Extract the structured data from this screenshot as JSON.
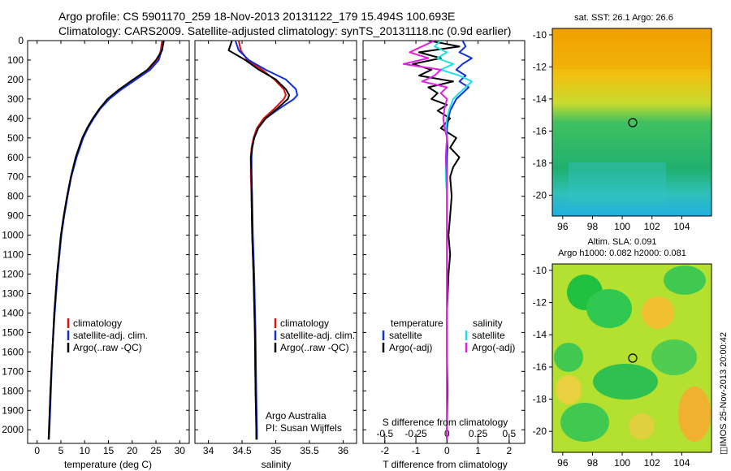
{
  "header": {
    "title_line1": "Argo profile: CS 5901170_259 18-Nov-2013 20131122_179 15.494S 100.693E",
    "title_line2": "Climatology: CARS2009. Satellite-adjusted climatology: synTS_20131118.nc (0.9d earlier)"
  },
  "panels": {
    "temperature": {
      "xlabel": "temperature (deg C)",
      "xticks": [
        "0",
        "5",
        "10",
        "15",
        "20",
        "25",
        "30"
      ],
      "legend": [
        "climatology",
        "satellite-adj. clim.",
        "Argo(..raw -QC)"
      ]
    },
    "salinity": {
      "xlabel": "salinity",
      "xticks": [
        "34",
        "34.5",
        "35",
        "35.5",
        "36"
      ],
      "legend": [
        "climatology",
        "satellite-adj. clim.",
        "Argo(..raw -QC)"
      ],
      "credit_line1": "Argo Australia",
      "credit_line2": "PI: Susan Wijffels"
    },
    "difference": {
      "xlabel": "T difference from climatology",
      "top_label": "S difference from climatology",
      "xticks": [
        "-2",
        "-1",
        "0",
        "1",
        "2"
      ],
      "sticks": [
        "-0.5",
        "-0.25",
        "0",
        "0.25",
        "0.5"
      ],
      "legend_t_head": "temperature",
      "legend_s_head": "salinity",
      "legend_t": [
        "satellite",
        "Argo(-adj)"
      ],
      "legend_s": [
        "satellite",
        "Argo(-adj)"
      ]
    },
    "sst_map": {
      "title": "sat. SST: 26.1  Argo: 26.6",
      "yticks": [
        "-10",
        "-12",
        "-14",
        "-16",
        "-18",
        "-20"
      ],
      "xticks": [
        "96",
        "98",
        "100",
        "102",
        "104"
      ]
    },
    "sla_map": {
      "title_line1": "Altim. SLA: 0.091",
      "title_line2": "Argo h1000: 0.082 h2000: 0.081",
      "yticks": [
        "-10",
        "-12",
        "-14",
        "-16",
        "-18",
        "-20"
      ],
      "xticks": [
        "96",
        "98",
        "100",
        "102",
        "104"
      ]
    }
  },
  "stamp": "◫IMOS 25-Nov-2013 20:00:42",
  "colors": {
    "climatology": "#e01010",
    "satellite": "#1030e0",
    "argo": "#000000",
    "sat_sal": "#20e0e0",
    "argo_sal": "#e020e0"
  },
  "chart_data": [
    {
      "type": "line",
      "title": "",
      "xlabel": "temperature (deg C)",
      "ylabel": "",
      "xlim": [
        -2,
        32
      ],
      "ylim": [
        2070,
        0
      ],
      "yticks": [
        0,
        100,
        200,
        300,
        400,
        500,
        600,
        700,
        800,
        900,
        1000,
        1100,
        1200,
        1300,
        1400,
        1500,
        1600,
        1700,
        1800,
        1900,
        2000
      ],
      "depth": [
        0,
        50,
        100,
        150,
        200,
        250,
        300,
        350,
        400,
        450,
        500,
        600,
        700,
        800,
        900,
        1000,
        1200,
        1400,
        1600,
        1800,
        2000,
        2050
      ],
      "series": [
        {
          "name": "climatology",
          "values": [
            26.3,
            26.0,
            25.4,
            23.5,
            20.5,
            17.5,
            15.0,
            13.2,
            11.8,
            10.6,
            9.6,
            8.2,
            7.1,
            6.3,
            5.6,
            5.0,
            4.2,
            3.6,
            3.2,
            2.8,
            2.5,
            2.4
          ]
        },
        {
          "name": "satellite-adj. clim.",
          "values": [
            26.7,
            26.2,
            25.6,
            23.8,
            20.8,
            17.8,
            15.2,
            13.3,
            11.9,
            10.7,
            9.7,
            8.3,
            7.2,
            6.4,
            5.7,
            5.1,
            4.3,
            3.7,
            3.2,
            2.9,
            2.6,
            2.5
          ]
        },
        {
          "name": "Argo(..raw -QC)",
          "values": [
            26.6,
            26.3,
            25.0,
            23.2,
            20.2,
            17.3,
            14.8,
            13.1,
            11.7,
            10.5,
            9.5,
            8.1,
            7.1,
            6.3,
            5.6,
            5.0,
            4.2,
            3.6,
            3.2,
            2.8,
            2.5,
            2.4
          ]
        }
      ]
    },
    {
      "type": "line",
      "title": "",
      "xlabel": "salinity",
      "ylabel": "",
      "xlim": [
        33.8,
        36.2
      ],
      "ylim": [
        2070,
        0
      ],
      "depth": [
        0,
        50,
        100,
        150,
        200,
        250,
        280,
        300,
        350,
        400,
        450,
        500,
        550,
        600,
        700,
        800,
        1000,
        1200,
        1500,
        1800,
        2000,
        2050
      ],
      "series": [
        {
          "name": "climatology",
          "values": [
            34.45,
            34.48,
            34.58,
            34.8,
            34.98,
            35.12,
            35.15,
            35.12,
            34.98,
            34.82,
            34.72,
            34.67,
            34.64,
            34.63,
            34.63,
            34.64,
            34.65,
            34.67,
            34.69,
            34.7,
            34.72,
            34.72
          ]
        },
        {
          "name": "satellite-adj. clim.",
          "values": [
            34.4,
            34.45,
            34.6,
            34.85,
            35.15,
            35.3,
            35.32,
            35.27,
            35.05,
            34.85,
            34.74,
            34.68,
            34.65,
            34.64,
            34.64,
            34.65,
            34.66,
            34.68,
            34.7,
            34.71,
            34.72,
            34.72
          ]
        },
        {
          "name": "Argo(..raw -QC)",
          "values": [
            34.35,
            34.3,
            34.55,
            34.75,
            35.0,
            35.15,
            35.2,
            35.18,
            35.02,
            34.85,
            34.74,
            34.68,
            34.65,
            34.63,
            34.64,
            34.64,
            34.65,
            34.67,
            34.69,
            34.7,
            34.71,
            34.71
          ]
        }
      ]
    },
    {
      "type": "line",
      "title": "",
      "xlabel": "T difference from climatology",
      "ylabel": "",
      "xlim": [
        -2.7,
        2.5
      ],
      "ylim": [
        2070,
        0
      ],
      "depth": [
        0,
        30,
        60,
        90,
        120,
        150,
        180,
        210,
        240,
        270,
        300,
        330,
        360,
        400,
        450,
        500,
        550,
        600,
        650,
        700,
        800,
        900,
        1000,
        1100,
        1200,
        1400,
        1600,
        1800,
        2000,
        2050
      ],
      "series": [
        {
          "name": "temperature satellite",
          "values": [
            0.5,
            0.6,
            0.4,
            0.8,
            0.5,
            0.3,
            0.6,
            0.4,
            0.7,
            0.5,
            0.3,
            0.2,
            0.1,
            0.05,
            0.0,
            0.0,
            0.02,
            0.0,
            0.0,
            0.0,
            0.0,
            0.0,
            0.0,
            0.0,
            0.0,
            0.0,
            0.0,
            0.0,
            0.0,
            0.0
          ]
        },
        {
          "name": "temperature Argo(-adj)",
          "values": [
            -0.6,
            0.4,
            -0.9,
            -0.2,
            -1.1,
            -0.5,
            -0.9,
            0.2,
            -0.6,
            -0.3,
            -0.5,
            0.0,
            -0.3,
            0.1,
            -0.2,
            0.3,
            0.1,
            0.4,
            0.2,
            0.1,
            0.15,
            0.1,
            0.05,
            0.1,
            0.05,
            0.0,
            0.0,
            0.02,
            0.0,
            0.0
          ]
        }
      ]
    },
    {
      "type": "line",
      "title": "",
      "xlabel": "S difference from climatology",
      "ylabel": "",
      "xlim": [
        -0.675,
        0.625
      ],
      "ylim": [
        2070,
        0
      ],
      "depth": [
        0,
        30,
        60,
        90,
        120,
        150,
        180,
        210,
        240,
        270,
        300,
        350,
        400,
        450,
        500,
        600,
        700,
        800,
        1000,
        1200,
        1500,
        1800,
        2000,
        2050
      ],
      "series": [
        {
          "name": "salinity satellite",
          "values": [
            -0.05,
            -0.1,
            0.0,
            -0.08,
            0.05,
            -0.05,
            0.1,
            0.2,
            0.15,
            0.1,
            0.05,
            0.02,
            0.0,
            -0.01,
            0.0,
            -0.01,
            -0.01,
            0.0,
            0.0,
            0.0,
            0.0,
            0.0,
            0.0,
            0.0
          ]
        },
        {
          "name": "salinity Argo(-adj)",
          "values": [
            -0.1,
            -0.2,
            -0.3,
            -0.15,
            -0.35,
            -0.05,
            -0.1,
            -0.2,
            0.0,
            -0.05,
            0.0,
            -0.02,
            -0.03,
            -0.02,
            0.0,
            -0.01,
            0.0,
            0.0,
            0.0,
            0.0,
            0.0,
            0.0,
            0.0,
            0.0
          ]
        }
      ]
    }
  ]
}
